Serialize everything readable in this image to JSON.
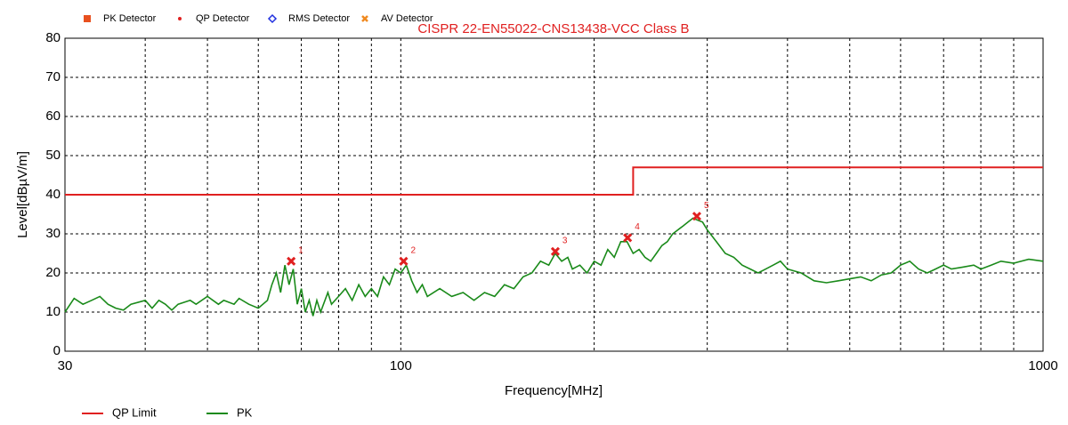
{
  "chart_data": {
    "type": "line",
    "title": "CISPR 22-EN55022-CNS13438-VCC Class B",
    "title_color": "#e02020",
    "x_label": "Frequency[MHz]",
    "y_label": "Level[dBµV/m]",
    "log_x": true,
    "xlim": [
      30,
      1000
    ],
    "ylim": [
      0,
      80
    ],
    "xticks": [
      30,
      100,
      1000
    ],
    "xgrid": [
      40,
      50,
      60,
      70,
      80,
      90,
      200,
      300,
      400,
      500,
      600,
      700,
      800,
      900
    ],
    "yticks": [
      0,
      10,
      20,
      30,
      40,
      50,
      60,
      70,
      80
    ],
    "grid": true,
    "detectors": [
      {
        "name": "PK Detector",
        "color": "#e8501f",
        "symbol": "square"
      },
      {
        "name": "QP Detector",
        "color": "#e02020",
        "symbol": "dot"
      },
      {
        "name": "RMS Detector",
        "color": "#1f2fe0",
        "symbol": "diamond"
      },
      {
        "name": "AV Detector",
        "color": "#f08a20",
        "symbol": "cross"
      }
    ],
    "series": [
      {
        "name": "QP Limit",
        "color": "#e02020",
        "x": [
          30,
          230,
          230,
          1000
        ],
        "values": [
          40,
          40,
          47,
          47
        ]
      },
      {
        "name": "PK",
        "color": "#1a8a1a",
        "x": [
          30,
          31,
          32,
          33,
          34,
          35,
          36,
          37,
          38,
          40,
          41,
          42,
          43,
          44,
          45,
          47,
          48,
          50,
          52,
          53,
          55,
          56,
          58,
          60,
          62,
          63,
          64,
          65,
          66,
          67,
          68,
          69,
          70,
          71,
          72,
          73,
          74,
          75,
          77,
          78,
          80,
          82,
          84,
          86,
          88,
          90,
          92,
          94,
          96,
          98,
          100,
          102,
          104,
          106,
          108,
          110,
          115,
          120,
          125,
          130,
          135,
          140,
          145,
          150,
          155,
          160,
          165,
          170,
          174,
          178,
          182,
          185,
          190,
          195,
          200,
          205,
          210,
          215,
          220,
          225,
          230,
          235,
          240,
          245,
          250,
          255,
          260,
          265,
          270,
          275,
          280,
          285,
          290,
          295,
          300,
          310,
          320,
          330,
          340,
          350,
          360,
          370,
          380,
          390,
          400,
          420,
          440,
          460,
          480,
          500,
          520,
          540,
          560,
          580,
          600,
          620,
          640,
          660,
          680,
          700,
          720,
          750,
          780,
          800,
          830,
          860,
          900,
          950,
          1000
        ],
        "values": [
          10,
          13.5,
          12,
          13,
          14,
          12,
          11,
          10.5,
          12,
          13,
          11,
          13,
          12,
          10.5,
          12,
          13,
          12,
          14,
          12,
          13,
          12,
          13.5,
          12,
          11,
          13,
          17,
          20,
          15,
          22,
          17,
          21,
          12,
          16,
          10,
          13,
          9,
          13,
          10,
          15,
          12,
          14,
          16,
          13,
          17,
          14,
          16,
          14,
          19,
          17,
          21,
          20,
          22,
          18,
          15,
          17,
          14,
          16,
          14,
          15,
          13,
          15,
          14,
          17,
          16,
          19,
          20,
          23,
          22,
          25,
          23,
          24,
          21,
          22,
          20,
          23,
          22,
          26,
          24,
          28,
          28,
          25,
          26,
          24,
          23,
          25,
          27,
          28,
          30,
          31,
          32,
          33,
          34,
          33.5,
          33,
          31,
          28,
          25,
          24,
          22,
          21,
          20,
          21,
          22,
          23,
          21,
          20,
          18,
          17.5,
          18,
          18.5,
          19,
          18,
          19.5,
          20,
          22,
          23,
          21,
          20,
          21,
          22,
          21,
          21.5,
          22,
          21,
          22,
          23,
          22.5,
          23.5,
          23
        ]
      }
    ],
    "markers": {
      "color": "#e02020",
      "x": [
        67.5,
        101,
        174,
        225.5,
        289
      ],
      "values": [
        23,
        23,
        25.5,
        29,
        34.5
      ],
      "labels": [
        "1",
        "2",
        "3",
        "4",
        "5"
      ]
    }
  }
}
